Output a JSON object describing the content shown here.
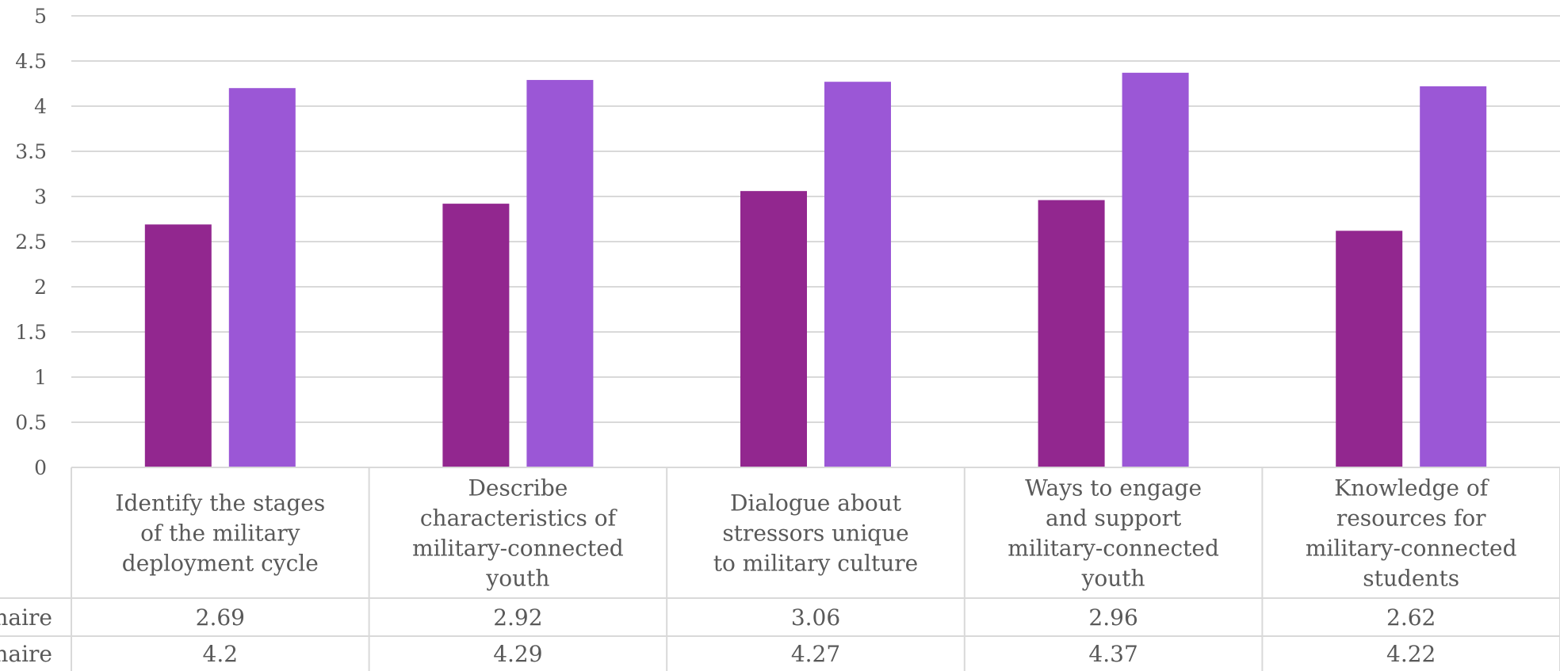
{
  "chart_data": {
    "type": "bar",
    "title": "",
    "xlabel": "",
    "ylabel": "",
    "ylim": [
      0,
      5
    ],
    "yticks": [
      "0",
      "0.5",
      "1",
      "1.5",
      "2",
      "2.5",
      "3",
      "3.5",
      "4",
      "4.5",
      "5"
    ],
    "grid": true,
    "legend": "data-table-below",
    "categories": [
      [
        "Identify the stages",
        "of the military",
        "deployment cycle"
      ],
      [
        "Describe",
        "characteristics of",
        "military-connected",
        "youth"
      ],
      [
        "Dialogue about",
        "stressors unique",
        "to military culture"
      ],
      [
        "Ways to engage",
        "and support",
        "military-connected",
        "youth"
      ],
      [
        "Knowledge of",
        "resources for",
        "military-connected",
        "students"
      ]
    ],
    "series": [
      {
        "row_label": "naire",
        "color": "#92278f",
        "values": [
          2.69,
          2.92,
          3.06,
          2.96,
          2.62
        ],
        "value_labels": [
          "2.69",
          "2.92",
          "3.06",
          "2.96",
          "2.62"
        ]
      },
      {
        "row_label": "onaire",
        "color": "#9b57d6",
        "values": [
          4.2,
          4.29,
          4.27,
          4.37,
          4.22
        ],
        "value_labels": [
          "4.2",
          "4.29",
          "4.27",
          "4.37",
          "4.22"
        ]
      }
    ]
  }
}
